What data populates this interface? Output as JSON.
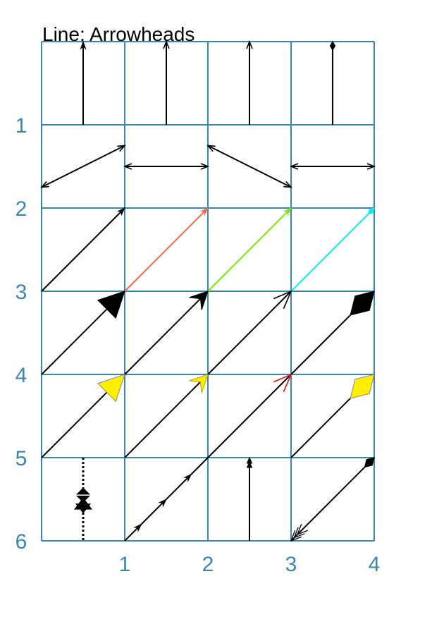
{
  "title": "Line: Arrowheads",
  "colors": {
    "grid": "#3c87ad",
    "axis_text": "#3c87ad",
    "default": "#000000"
  },
  "axes": {
    "x_ticks": [
      "1",
      "2",
      "3",
      "4"
    ],
    "y_ticks": [
      "1",
      "2",
      "3",
      "4",
      "5",
      "6"
    ]
  },
  "grid": {
    "cols": 4,
    "rows": 6
  },
  "arrows": [
    {
      "name": "arrow-r1-c1",
      "from": [
        0.5,
        1
      ],
      "to": [
        0.5,
        0
      ],
      "line": "#000000",
      "heads": [
        {
          "at": "end",
          "style": "classic",
          "color": "#000000",
          "size": 1
        }
      ]
    },
    {
      "name": "arrow-r1-c2",
      "from": [
        1.5,
        1
      ],
      "to": [
        1.5,
        0
      ],
      "line": "#000000",
      "heads": [
        {
          "at": "end",
          "style": "open",
          "color": "#000000",
          "size": 1
        }
      ]
    },
    {
      "name": "arrow-r1-c3",
      "from": [
        2.5,
        1
      ],
      "to": [
        2.5,
        0
      ],
      "line": "#000000",
      "heads": [
        {
          "at": "end",
          "style": "open",
          "color": "#000000",
          "size": 1
        }
      ]
    },
    {
      "name": "arrow-r1-c4",
      "from": [
        3.5,
        1
      ],
      "to": [
        3.5,
        0
      ],
      "line": "#000000",
      "heads": [
        {
          "at": "end",
          "style": "diamond",
          "color": "#000000",
          "size": 1
        }
      ]
    },
    {
      "name": "arrow-r2-c1",
      "from": [
        0,
        1.75
      ],
      "to": [
        1,
        1.25
      ],
      "line": "#000000",
      "heads": [
        {
          "at": "start",
          "style": "open",
          "color": "#000000",
          "size": 1
        },
        {
          "at": "end",
          "style": "open",
          "color": "#000000",
          "size": 1
        }
      ]
    },
    {
      "name": "arrow-r2-c2",
      "from": [
        1,
        1.5
      ],
      "to": [
        2,
        1.5
      ],
      "line": "#000000",
      "heads": [
        {
          "at": "start",
          "style": "open",
          "color": "#000000",
          "size": 1
        },
        {
          "at": "end",
          "style": "open",
          "color": "#000000",
          "size": 1
        }
      ]
    },
    {
      "name": "arrow-r2-c3",
      "from": [
        2,
        1.25
      ],
      "to": [
        3,
        1.75
      ],
      "line": "#000000",
      "heads": [
        {
          "at": "start",
          "style": "open",
          "color": "#000000",
          "size": 1
        },
        {
          "at": "end",
          "style": "open",
          "color": "#000000",
          "size": 1
        }
      ]
    },
    {
      "name": "arrow-r2-c4",
      "from": [
        3,
        1.5
      ],
      "to": [
        4,
        1.5
      ],
      "line": "#000000",
      "heads": [
        {
          "at": "start",
          "style": "open",
          "color": "#000000",
          "size": 1
        },
        {
          "at": "end",
          "style": "open",
          "color": "#000000",
          "size": 1
        }
      ]
    },
    {
      "name": "arrow-r3-c1",
      "from": [
        0,
        3
      ],
      "to": [
        1,
        2
      ],
      "line": "#000000",
      "heads": [
        {
          "at": "end",
          "style": "classic",
          "color": "#000000",
          "size": 1
        }
      ]
    },
    {
      "name": "arrow-r3-c2",
      "from": [
        1,
        3
      ],
      "to": [
        2,
        2
      ],
      "line": "#f26b4f",
      "heads": [
        {
          "at": "end",
          "style": "classic",
          "color": "#f26b4f",
          "size": 1
        }
      ]
    },
    {
      "name": "arrow-r3-c3",
      "from": [
        2,
        3
      ],
      "to": [
        3,
        2
      ],
      "line": "#7fe61e",
      "heads": [
        {
          "at": "end",
          "style": "classic",
          "color": "#7fe61e",
          "size": 1
        }
      ]
    },
    {
      "name": "arrow-r3-c4",
      "from": [
        3,
        3
      ],
      "to": [
        4,
        2
      ],
      "line": "#1ee6f0",
      "heads": [
        {
          "at": "end",
          "style": "diamond",
          "color": "#1ee6f0",
          "size": 1
        }
      ]
    },
    {
      "name": "arrow-r4-c1",
      "from": [
        0,
        4
      ],
      "to": [
        1,
        3
      ],
      "line": "#000000",
      "heads": [
        {
          "at": "end",
          "style": "triangle",
          "color": "#000000",
          "size": 3
        }
      ]
    },
    {
      "name": "arrow-r4-c2",
      "from": [
        1,
        4
      ],
      "to": [
        2,
        3
      ],
      "line": "#000000",
      "heads": [
        {
          "at": "end",
          "style": "stealth",
          "color": "#000000",
          "size": 2.5
        }
      ]
    },
    {
      "name": "arrow-r4-c3",
      "from": [
        2,
        4
      ],
      "to": [
        3,
        3
      ],
      "line": "#000000",
      "heads": [
        {
          "at": "end",
          "style": "open",
          "color": "#000000",
          "size": 2.5
        }
      ]
    },
    {
      "name": "arrow-r4-c4",
      "from": [
        3,
        4
      ],
      "to": [
        4,
        3
      ],
      "line": "#000000",
      "heads": [
        {
          "at": "end",
          "style": "diamond",
          "color": "#000000",
          "size": 4
        }
      ]
    },
    {
      "name": "arrow-r5-c1",
      "from": [
        0,
        5
      ],
      "to": [
        1,
        4
      ],
      "line": "#000000",
      "heads": [
        {
          "at": "end",
          "style": "triangle",
          "color": "#ffee00",
          "stroke": "#888888",
          "size": 3
        }
      ]
    },
    {
      "name": "arrow-r5-c2",
      "from": [
        1,
        5
      ],
      "to": [
        2,
        4
      ],
      "line": "#000000",
      "heads": [
        {
          "at": "end",
          "style": "stealth",
          "color": "#ffee00",
          "stroke": "#bba000",
          "size": 2.5
        }
      ]
    },
    {
      "name": "arrow-r5-c3",
      "from": [
        2,
        5
      ],
      "to": [
        3,
        4
      ],
      "line": "#000000",
      "heads": [
        {
          "at": "end",
          "style": "open",
          "color": "#ee1111",
          "size": 2.5
        }
      ]
    },
    {
      "name": "arrow-r5-c4",
      "from": [
        3,
        5
      ],
      "to": [
        4,
        4
      ],
      "line": "#000000",
      "heads": [
        {
          "at": "end",
          "style": "diamond",
          "color": "#ffee00",
          "stroke": "#888888",
          "size": 4
        }
      ]
    },
    {
      "name": "arrow-r6-c1",
      "from": [
        0.5,
        5
      ],
      "to": [
        0.5,
        6
      ],
      "line": "#000000",
      "dotted": true,
      "heads": [
        {
          "at": 0.45,
          "style": "diamond-mid",
          "color": "#000000",
          "size": 2
        }
      ]
    },
    {
      "name": "arrow-r6-c2",
      "from": [
        1,
        6
      ],
      "to": [
        2,
        5
      ],
      "line": "#000000",
      "heads": [
        {
          "at": 0.2,
          "style": "classic",
          "color": "#000000",
          "size": 1
        },
        {
          "at": 0.5,
          "style": "classic",
          "color": "#000000",
          "size": 1
        },
        {
          "at": 0.8,
          "style": "classic",
          "color": "#000000",
          "size": 1
        }
      ]
    },
    {
      "name": "arrow-r6-c3",
      "from": [
        2.5,
        6
      ],
      "to": [
        2.5,
        5
      ],
      "line": "#000000",
      "heads": [
        {
          "at": "end",
          "style": "double",
          "color": "#000000",
          "size": 1
        }
      ]
    },
    {
      "name": "arrow-r6-c4",
      "from": [
        3,
        6
      ],
      "to": [
        4,
        5
      ],
      "line": "#000000",
      "heads": [
        {
          "at": "end",
          "style": "diamond",
          "color": "#000000",
          "size": 1.6
        },
        {
          "at": "start",
          "style": "multi-open",
          "color": "#000000",
          "size": 1.6
        }
      ]
    }
  ]
}
